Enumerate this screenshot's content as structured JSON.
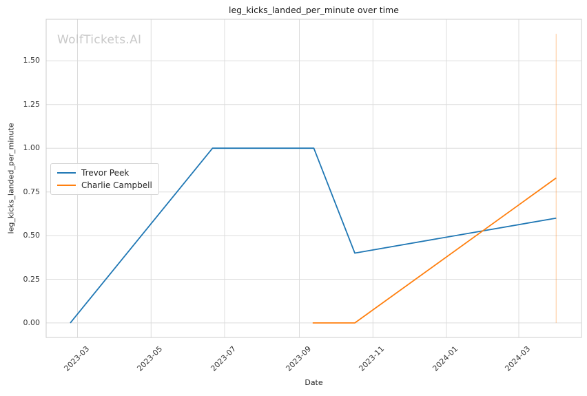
{
  "chart_data": {
    "type": "line",
    "title": "leg_kicks_landed_per_minute over time",
    "xlabel": "Date",
    "ylabel": "leg_kicks_landed_per_minute",
    "watermark": "WolfTickets.AI",
    "grid": true,
    "legend_position": "center-left",
    "x_ticks": [
      {
        "label": "2023-03",
        "date": "2023-03-01"
      },
      {
        "label": "2023-05",
        "date": "2023-05-01"
      },
      {
        "label": "2023-07",
        "date": "2023-07-01"
      },
      {
        "label": "2023-09",
        "date": "2023-09-01"
      },
      {
        "label": "2023-11",
        "date": "2023-11-01"
      },
      {
        "label": "2024-01",
        "date": "2024-01-01"
      },
      {
        "label": "2024-03",
        "date": "2024-03-01"
      }
    ],
    "y_ticks": [
      {
        "label": "0.00",
        "value": 0.0
      },
      {
        "label": "0.25",
        "value": 0.25
      },
      {
        "label": "0.50",
        "value": 0.5
      },
      {
        "label": "0.75",
        "value": 0.75
      },
      {
        "label": "1.00",
        "value": 1.0
      },
      {
        "label": "1.25",
        "value": 1.25
      },
      {
        "label": "1.50",
        "value": 1.5
      }
    ],
    "xlim": [
      "2023-02-03",
      "2024-04-22"
    ],
    "ylim": [
      -0.083,
      1.738
    ],
    "series": [
      {
        "name": "Trevor Peek",
        "color": "#1f77b4",
        "points": [
          {
            "date": "2023-02-23",
            "value": 0.0
          },
          {
            "date": "2023-06-21",
            "value": 1.0
          },
          {
            "date": "2023-09-13",
            "value": 1.0
          },
          {
            "date": "2023-10-17",
            "value": 0.4
          },
          {
            "date": "2024-04-01",
            "value": 0.6
          }
        ]
      },
      {
        "name": "Charlie Campbell",
        "color": "#ff7f0e",
        "points": [
          {
            "date": "2023-09-12",
            "value": 0.0
          },
          {
            "date": "2023-10-17",
            "value": 0.0
          },
          {
            "date": "2024-04-01",
            "value": 0.83
          }
        ]
      }
    ],
    "event_vline": {
      "date": "2024-04-01",
      "y_from": 0.0,
      "y_to": 1.655,
      "color": "#ff7f0e",
      "opacity": 0.3
    },
    "colors": {
      "grid": "#dcdcdc",
      "spine": "#cccccc",
      "background": "#ffffff",
      "title_text": "#1a1a1a",
      "tick_text": "#333333",
      "watermark": "#c9c9c9",
      "legend_border": "#d5d5d5"
    }
  }
}
